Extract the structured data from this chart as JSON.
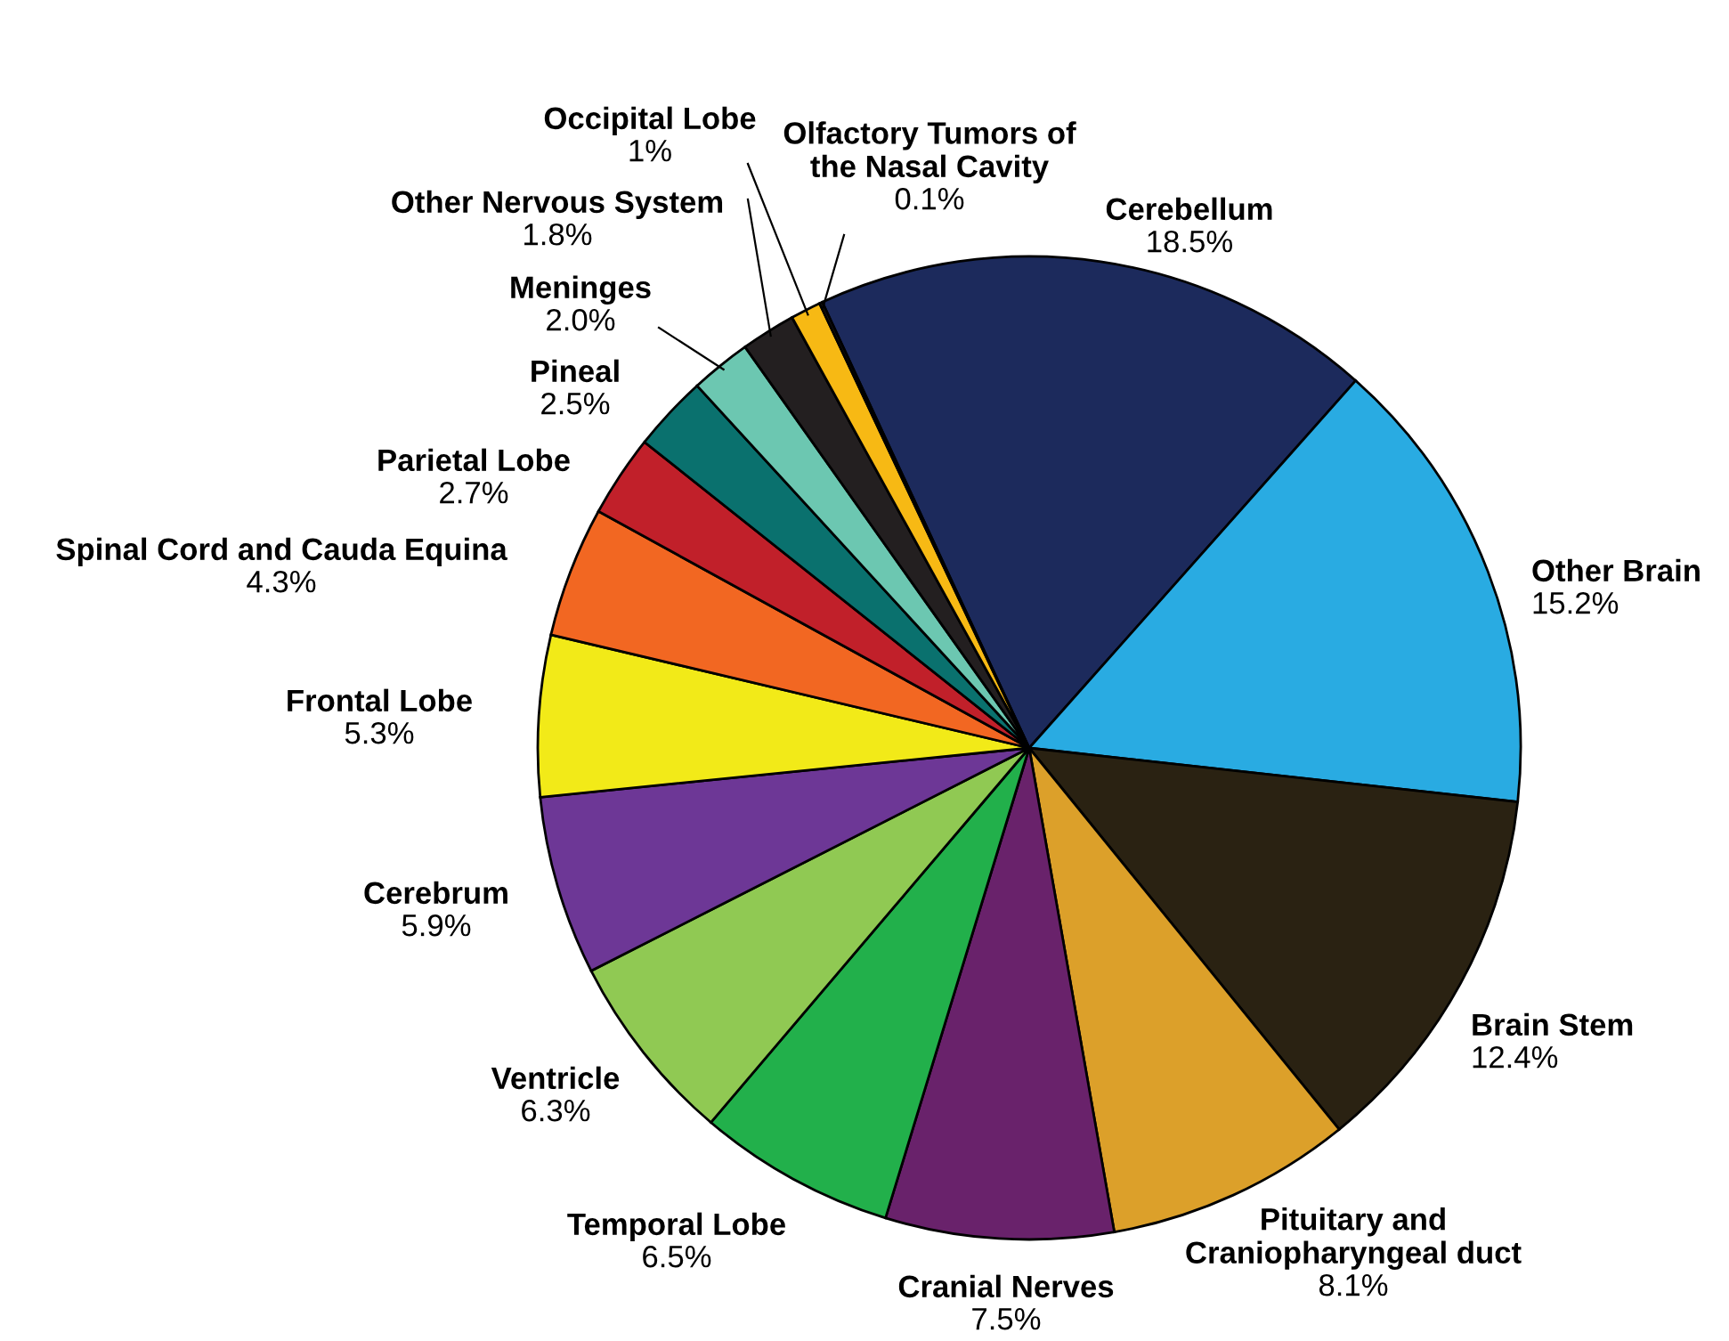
{
  "chart_data": {
    "type": "pie",
    "categories": [
      "Cerebellum",
      "Other Brain",
      "Brain Stem",
      "Pituitary and Craniopharyngeal duct",
      "Cranial Nerves",
      "Temporal Lobe",
      "Ventricle",
      "Cerebrum",
      "Frontal Lobe",
      "Spinal Cord and Cauda Equina",
      "Parietal Lobe",
      "Pineal",
      "Meninges",
      "Other Nervous System",
      "Occipital Lobe",
      "Olfactory Tumors of the Nasal Cavity"
    ],
    "values": [
      18.5,
      15.2,
      12.4,
      8.1,
      7.5,
      6.5,
      6.3,
      5.9,
      5.3,
      4.3,
      2.7,
      2.5,
      2.0,
      1.8,
      1,
      0.1
    ],
    "value_labels": [
      "18.5%",
      "15.2%",
      "12.4%",
      "8.1%",
      "7.5%",
      "6.5%",
      "6.3%",
      "5.9%",
      "5.3%",
      "4.3%",
      "2.7%",
      "2.5%",
      "2.0%",
      "1.8%",
      "1%",
      "0.1%"
    ],
    "colors": [
      "#1c2a5c",
      "#29abe2",
      "#2a2212",
      "#dca02a",
      "#69226b",
      "#22b04b",
      "#90c953",
      "#6d3796",
      "#f2ea18",
      "#f26722",
      "#c1202a",
      "#0a716e",
      "#6cc7b1",
      "#231f20",
      "#f7b914",
      "#231f20"
    ]
  }
}
